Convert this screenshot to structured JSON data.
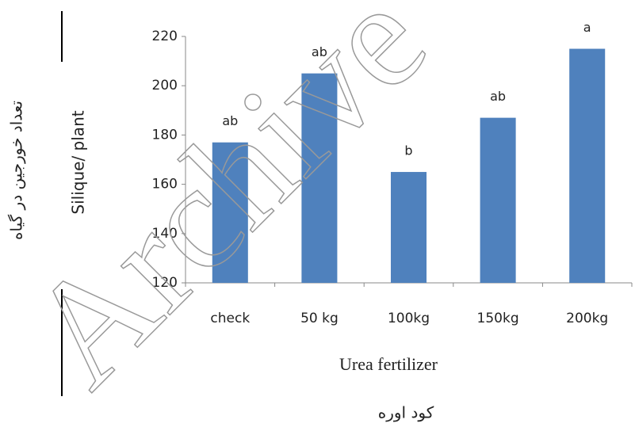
{
  "chart_data": {
    "type": "bar",
    "categories": [
      "check",
      "50 kg",
      "100kg",
      "150kg",
      "200kg"
    ],
    "values": [
      177,
      205,
      165,
      187,
      215
    ],
    "significance_letters": [
      "ab",
      "ab",
      "b",
      "ab",
      "a"
    ],
    "color": "#4f81bd",
    "ylim": [
      120,
      220
    ],
    "yticks": [
      120,
      140,
      160,
      180,
      200,
      220
    ],
    "grid": false,
    "y_label": "Silique/ plant",
    "x_label": "Urea fertilizer",
    "y_label_persian": "تعداد خورجین در گیاه",
    "x_label_persian": "کود اوره",
    "watermark": "Archive"
  }
}
